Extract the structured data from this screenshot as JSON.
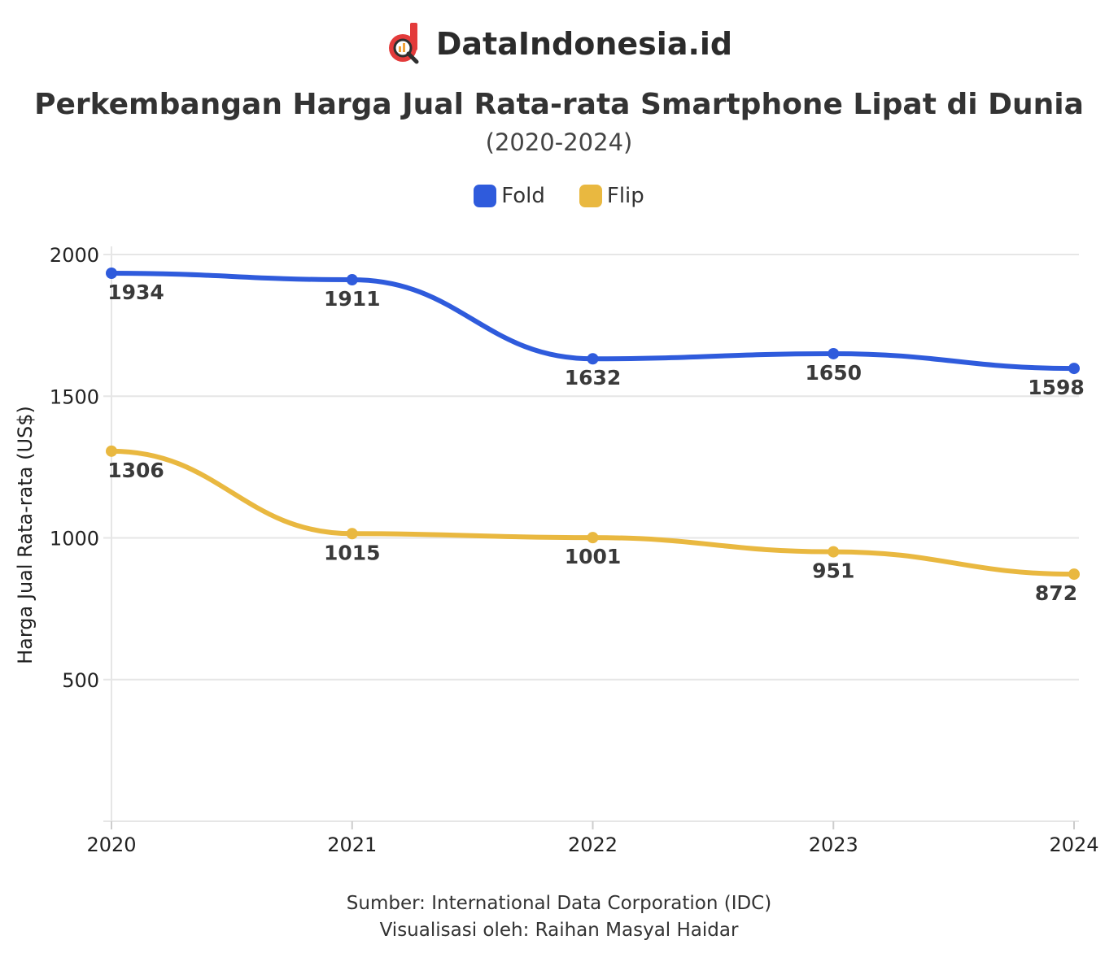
{
  "brand": {
    "name": "DataIndonesia.id",
    "logo_colors": [
      "#e33b3b",
      "#f2a23a",
      "#2f2f2f"
    ]
  },
  "colors": {
    "fold": "#2f5bdc",
    "flip": "#e9b840",
    "grid": "#e6e6e6",
    "text": "#333333"
  },
  "chart_data": {
    "type": "line",
    "title": "Perkembangan Harga Jual Rata-rata Smartphone Lipat di Dunia",
    "subtitle": "(2020-2024)",
    "x": [
      "2020",
      "2021",
      "2022",
      "2023",
      "2024"
    ],
    "series": [
      {
        "name": "Fold",
        "values": [
          1934,
          1911,
          1632,
          1650,
          1598
        ]
      },
      {
        "name": "Flip",
        "values": [
          1306,
          1015,
          1001,
          951,
          872
        ]
      }
    ],
    "ylabel": "Harga Jual Rata-rata (US$)",
    "xlabel": "",
    "ylim": [
      0,
      2000
    ],
    "yticks": [
      500,
      1000,
      1500,
      2000
    ],
    "grid": true,
    "legend": "top-center",
    "curve": "smooth",
    "data_labels": true
  },
  "footer": {
    "source": "Sumber: International Data Corporation (IDC)",
    "credit": "Visualisasi oleh: Raihan Masyal Haidar"
  }
}
